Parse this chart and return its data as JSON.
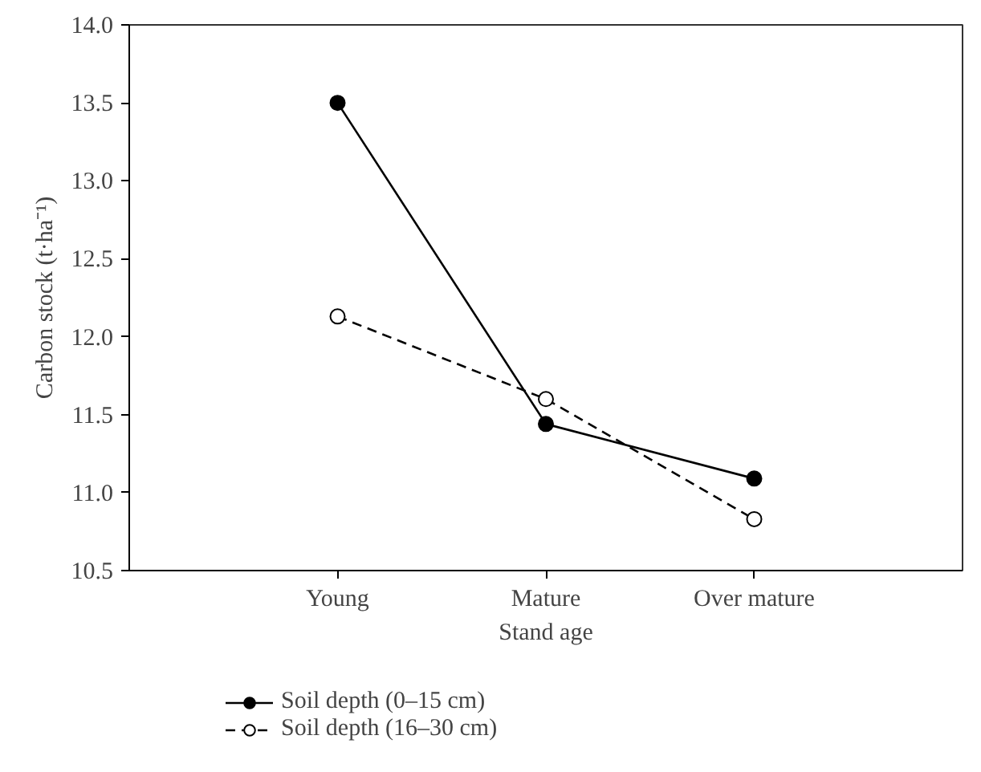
{
  "chart_data": {
    "type": "line",
    "xlabel": "Stand age",
    "ylabel": "Carbon stock (t·ha⁻¹)",
    "categories": [
      "Young",
      "Mature",
      "Over mature"
    ],
    "series": [
      {
        "name": "Soil depth (0–15 cm)",
        "color": "#000000",
        "values": [
          13.5,
          11.44,
          11.09
        ],
        "line_style": "solid",
        "marker": "circle"
      },
      {
        "name": "Soil depth (16–30 cm)",
        "color": "#000000",
        "values": [
          12.13,
          11.6,
          10.83
        ],
        "line_style": "dashed",
        "marker": "circle"
      }
    ],
    "ylim": [
      10.5,
      14.0
    ],
    "yticks": [
      10.5,
      {
        "value": 11,
        "label": "11.0"
      },
      11.5,
      {
        "value": 12,
        "label": "12.0"
      },
      12.5,
      {
        "value": 13,
        "label": "13.0"
      },
      13.5,
      {
        "value": 14,
        "label": "14.0"
      }
    ],
    "grid": false,
    "legend": "bottom left"
  }
}
